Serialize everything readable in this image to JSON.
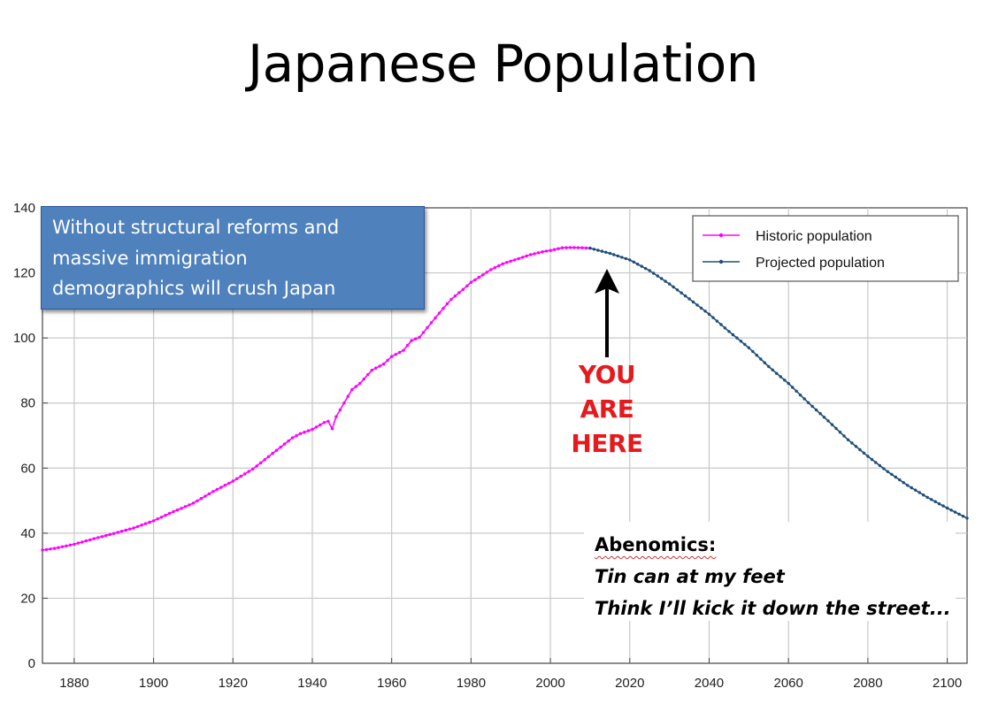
{
  "slide": {
    "title": "Japanese Population",
    "callout_lines": [
      "Without structural reforms and",
      "massive immigration",
      "demographics will crush Japan"
    ],
    "you_are_here": [
      "YOU",
      "ARE",
      "HERE"
    ],
    "abenomics": {
      "heading": "Abenomics:",
      "lines": [
        "Tin can at my feet",
        "Think I’ll kick it down the street..."
      ]
    }
  },
  "chart_data": {
    "type": "line",
    "title": "",
    "xlabel": "",
    "ylabel": "",
    "xlim": [
      1872,
      2105
    ],
    "ylim": [
      0,
      140
    ],
    "xticks": [
      1880,
      1900,
      1920,
      1940,
      1960,
      1980,
      2000,
      2020,
      2040,
      2060,
      2080,
      2100
    ],
    "yticks": [
      0,
      20,
      40,
      60,
      80,
      100,
      120,
      140
    ],
    "grid": true,
    "legend_position": "top-right",
    "colors": {
      "historic": "#ff00ff",
      "projected": "#1f4e79"
    },
    "series": [
      {
        "name": "Historic population",
        "x": [
          1872,
          1875,
          1880,
          1885,
          1890,
          1895,
          1900,
          1905,
          1910,
          1915,
          1920,
          1925,
          1930,
          1935,
          1937,
          1940,
          1943,
          1944,
          1945,
          1946,
          1948,
          1950,
          1952,
          1955,
          1958,
          1960,
          1963,
          1965,
          1967,
          1970,
          1973,
          1975,
          1978,
          1980,
          1983,
          1985,
          1988,
          1990,
          1993,
          1995,
          1998,
          2000,
          2003,
          2005,
          2008,
          2010
        ],
        "y": [
          34.8,
          35.3,
          36.6,
          38.3,
          39.9,
          41.6,
          43.8,
          46.6,
          49.2,
          52.8,
          56.0,
          59.7,
          64.5,
          69.3,
          70.6,
          71.9,
          74.0,
          74.4,
          72.1,
          75.8,
          80.0,
          84.1,
          86.0,
          90.1,
          92.0,
          94.3,
          96.2,
          99.2,
          100.2,
          104.7,
          109.1,
          111.9,
          114.9,
          117.1,
          119.4,
          121.0,
          122.8,
          123.6,
          124.8,
          125.6,
          126.5,
          126.9,
          127.7,
          127.8,
          127.7,
          127.6
        ]
      },
      {
        "name": "Projected population",
        "x": [
          2010,
          2015,
          2020,
          2025,
          2030,
          2035,
          2040,
          2045,
          2050,
          2055,
          2060,
          2065,
          2070,
          2075,
          2080,
          2085,
          2090,
          2095,
          2100,
          2105
        ],
        "y": [
          127.6,
          126.0,
          124.0,
          120.7,
          116.6,
          112.0,
          107.3,
          102.0,
          97.0,
          91.2,
          86.0,
          80.1,
          74.5,
          68.7,
          63.6,
          58.9,
          54.7,
          51.0,
          47.7,
          44.6
        ]
      }
    ]
  }
}
